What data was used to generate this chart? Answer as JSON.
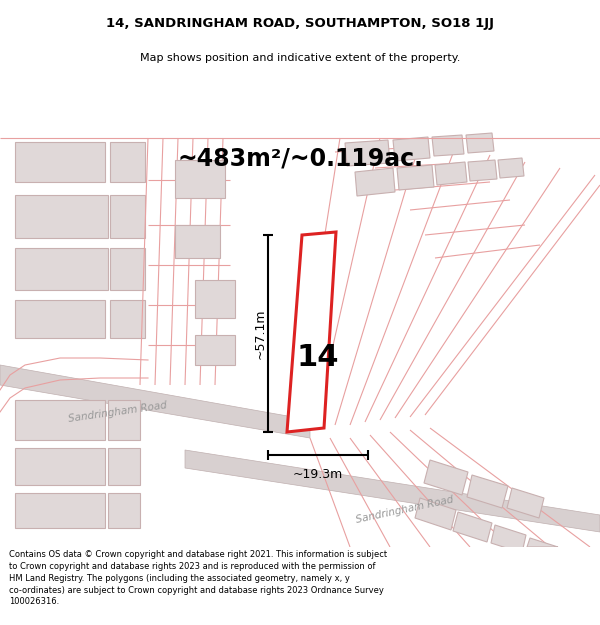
{
  "title_line1": "14, SANDRINGHAM ROAD, SOUTHAMPTON, SO18 1JJ",
  "title_line2": "Map shows position and indicative extent of the property.",
  "area_text": "~483m²/~0.119ac.",
  "label_14": "14",
  "dim_height": "~57.1m",
  "dim_width": "~19.3m",
  "road_label1": "Sandringham Road",
  "road_label2": "Sandringham Road",
  "footer_text": "Contains OS data © Crown copyright and database right 2021. This information is subject\nto Crown copyright and database rights 2023 and is reproduced with the permission of\nHM Land Registry. The polygons (including the associated geometry, namely x, y\nco-ordinates) are subject to Crown copyright and database rights 2023 Ordnance Survey\n100026316.",
  "bg_color": "#f7f3f3",
  "red_color": "#dd2222",
  "pink_line": "#e8a0a0",
  "gray_line": "#c0b0b0",
  "building_fill": "#e0d8d8",
  "building_edge": "#c8b0b0",
  "road_fill": "#d8d0d0",
  "white": "#ffffff",
  "black": "#000000",
  "road_text": "#999999",
  "title_fs": 9.5,
  "sub_fs": 8.0,
  "area_fs": 17,
  "label_fs": 22,
  "dim_fs": 9,
  "road_fs": 7.5,
  "footer_fs": 6.0
}
